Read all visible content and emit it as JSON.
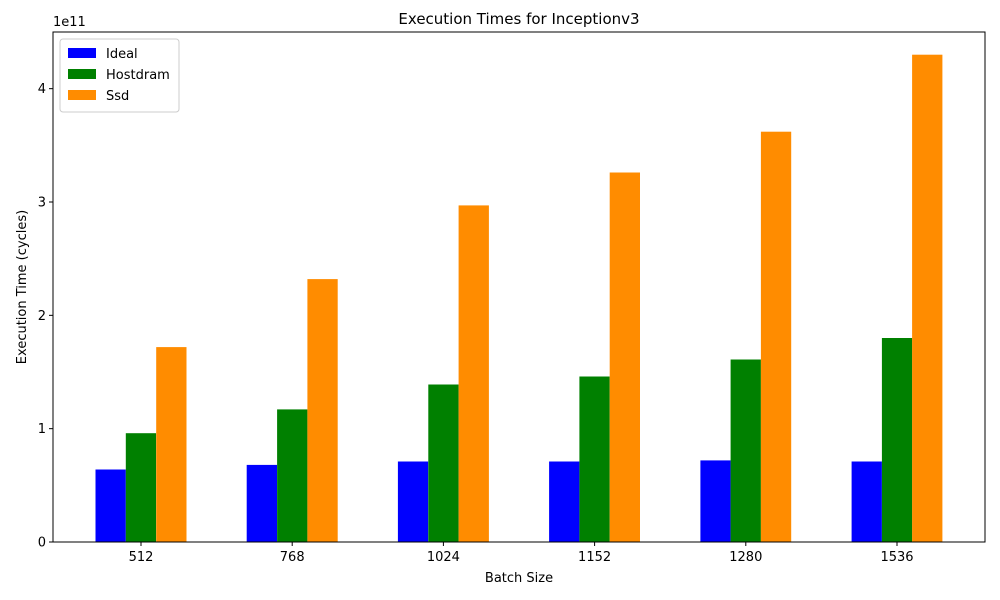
{
  "chart_data": {
    "type": "bar",
    "title": "Execution Times for Inceptionv3",
    "xlabel": "Batch Size",
    "ylabel": "Execution Time (cycles)",
    "offset_label": "1e11",
    "categories": [
      "512",
      "768",
      "1024",
      "1152",
      "1280",
      "1536"
    ],
    "series": [
      {
        "name": "Ideal",
        "color": "#0000ff",
        "values": [
          64000000000.0,
          68000000000.0,
          71000000000.0,
          71000000000.0,
          72000000000.0,
          71000000000.0
        ]
      },
      {
        "name": "Hostdram",
        "color": "#008000",
        "values": [
          96000000000.0,
          117000000000.0,
          139000000000.0,
          146000000000.0,
          161000000000.0,
          180000000000.0
        ]
      },
      {
        "name": "Ssd",
        "color": "#ff8c00",
        "values": [
          172000000000.0,
          232000000000.0,
          297000000000.0,
          326000000000.0,
          362000000000.0,
          430000000000.0
        ]
      }
    ],
    "ylim": [
      0,
      450000000000.0
    ],
    "yticks": [
      0,
      100000000000.0,
      200000000000.0,
      300000000000.0,
      400000000000.0
    ],
    "ytick_labels": [
      "0",
      "1",
      "2",
      "3",
      "4"
    ],
    "grid": false,
    "legend_position": "top-left"
  }
}
